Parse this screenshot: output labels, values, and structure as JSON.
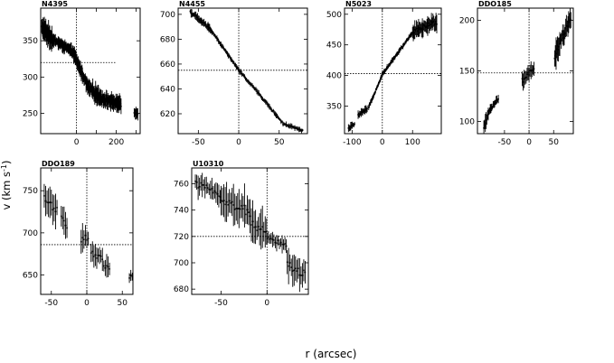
{
  "figure": {
    "ylabel_main": "v (km s",
    "ylabel_sup": "-1",
    "ylabel_close": ")",
    "xlabel": "r (arcsec)"
  },
  "chart_data": [
    {
      "type": "scatter",
      "title": "N4395",
      "xlim": [
        -180,
        320
      ],
      "ylim": [
        222,
        395
      ],
      "xticks": [
        0,
        100,
        200,
        300
      ],
      "xtick_labels": [
        "0",
        "",
        "200",
        ""
      ],
      "yticks": [
        250,
        300,
        350
      ],
      "ytick_labels": [
        "250",
        "300",
        "350"
      ],
      "vsys": 320,
      "vline": 0,
      "hline_x_range": [
        -180,
        200
      ],
      "segments": [
        {
          "x": [
            -175,
            -120
          ],
          "y": [
            368,
            352
          ],
          "err": 14,
          "step": 1.5
        },
        {
          "x": [
            -120,
            -20
          ],
          "y": [
            352,
            335
          ],
          "err": 8,
          "step": 2.0
        },
        {
          "x": [
            -20,
            60
          ],
          "y": [
            335,
            285
          ],
          "err": 10,
          "step": 2.0
        },
        {
          "x": [
            60,
            130
          ],
          "y": [
            285,
            270
          ],
          "err": 12,
          "step": 2.0
        },
        {
          "x": [
            130,
            225
          ],
          "y": [
            270,
            262
          ],
          "err": 10,
          "step": 2.0
        },
        {
          "x": [
            290,
            310
          ],
          "y": [
            250,
            250
          ],
          "err": 8,
          "step": 3.0
        }
      ]
    },
    {
      "type": "scatter",
      "title": "N4455",
      "xlim": [
        -75,
        85
      ],
      "ylim": [
        604,
        705
      ],
      "xticks": [
        -50,
        0,
        50
      ],
      "xtick_labels": [
        "-50",
        "0",
        "50"
      ],
      "yticks": [
        620,
        640,
        660,
        680,
        700
      ],
      "ytick_labels": [
        "620",
        "640",
        "660",
        "680",
        "700"
      ],
      "vsys": 655,
      "vline": 0,
      "hline_x_range": [
        -75,
        85
      ],
      "segments": [
        {
          "x": [
            -60,
            -35
          ],
          "y": [
            702,
            688
          ],
          "err": 3,
          "step": 1.0
        },
        {
          "x": [
            -35,
            0
          ],
          "y": [
            688,
            655
          ],
          "err": 2,
          "step": 1.0
        },
        {
          "x": [
            0,
            20
          ],
          "y": [
            655,
            640
          ],
          "err": 2,
          "step": 1.2
        },
        {
          "x": [
            20,
            55
          ],
          "y": [
            640,
            612
          ],
          "err": 2,
          "step": 1.2
        },
        {
          "x": [
            55,
            80
          ],
          "y": [
            612,
            606
          ],
          "err": 2,
          "step": 1.2
        }
      ]
    },
    {
      "type": "scatter",
      "title": "N5023",
      "xlim": [
        -125,
        195
      ],
      "ylim": [
        305,
        510
      ],
      "xticks": [
        -100,
        0,
        100
      ],
      "xtick_labels": [
        "-100",
        "0",
        "100"
      ],
      "yticks": [
        350,
        400,
        450,
        500
      ],
      "ytick_labels": [
        "350",
        "400",
        "450",
        "500"
      ],
      "vsys": 403,
      "vline": 0,
      "hline_x_range": [
        -125,
        195
      ],
      "segments": [
        {
          "x": [
            -112,
            -90
          ],
          "y": [
            313,
            322
          ],
          "err": 6,
          "step": 2.5
        },
        {
          "x": [
            -80,
            -50
          ],
          "y": [
            335,
            345
          ],
          "err": 6,
          "step": 2.5
        },
        {
          "x": [
            -45,
            0
          ],
          "y": [
            348,
            402
          ],
          "err": 4,
          "step": 2.0
        },
        {
          "x": [
            0,
            100
          ],
          "y": [
            402,
            470
          ],
          "err": 4,
          "step": 2.0
        },
        {
          "x": [
            100,
            180
          ],
          "y": [
            470,
            488
          ],
          "err": 14,
          "step": 2.5
        }
      ]
    },
    {
      "type": "scatter",
      "title": "DDO185",
      "xlim": [
        -105,
        90
      ],
      "ylim": [
        88,
        212
      ],
      "xticks": [
        -50,
        0,
        50
      ],
      "xtick_labels": [
        "-50",
        "0",
        "50"
      ],
      "yticks": [
        100,
        150,
        200
      ],
      "ytick_labels": [
        "100",
        "150",
        "200"
      ],
      "vsys": 148,
      "vline": 0,
      "hline_x_range": [
        -105,
        90
      ],
      "segments": [
        {
          "x": [
            -92,
            -82
          ],
          "y": [
            92,
            110
          ],
          "err": 8,
          "step": 1.5
        },
        {
          "x": [
            -82,
            -62
          ],
          "y": [
            110,
            123
          ],
          "err": 4,
          "step": 1.5
        },
        {
          "x": [
            -14,
            10
          ],
          "y": [
            140,
            152
          ],
          "err": 8,
          "step": 2.0
        },
        {
          "x": [
            52,
            58
          ],
          "y": [
            160,
            172
          ],
          "err": 14,
          "step": 1.5
        },
        {
          "x": [
            58,
            85
          ],
          "y": [
            172,
            202
          ],
          "err": 10,
          "step": 1.5
        }
      ]
    },
    {
      "type": "scatter",
      "title": "DDO189",
      "xlim": [
        -65,
        65
      ],
      "ylim": [
        627,
        777
      ],
      "xticks": [
        -50,
        0,
        50
      ],
      "xtick_labels": [
        "-50",
        "0",
        "50"
      ],
      "yticks": [
        650,
        700,
        750
      ],
      "ytick_labels": [
        "650",
        "700",
        "750"
      ],
      "vsys": 686,
      "vline": 0,
      "hline_x_range": [
        -65,
        65
      ],
      "segments": [
        {
          "x": [
            -60,
            -42
          ],
          "y": [
            740,
            728
          ],
          "err": 18,
          "step": 2.0
        },
        {
          "x": [
            -36,
            -28
          ],
          "y": [
            720,
            710
          ],
          "err": 15,
          "step": 2.0
        },
        {
          "x": [
            -8,
            3
          ],
          "y": [
            690,
            695
          ],
          "err": 15,
          "step": 2.0
        },
        {
          "x": [
            6,
            22
          ],
          "y": [
            678,
            668
          ],
          "err": 12,
          "step": 2.0
        },
        {
          "x": [
            24,
            32
          ],
          "y": [
            660,
            655
          ],
          "err": 12,
          "step": 2.0
        },
        {
          "x": [
            60,
            64
          ],
          "y": [
            648,
            648
          ],
          "err": 8,
          "step": 2.0
        }
      ]
    },
    {
      "type": "scatter",
      "title": "U10310",
      "xlim": [
        -82,
        45
      ],
      "ylim": [
        676,
        772
      ],
      "xticks": [
        -50,
        0
      ],
      "xtick_labels": [
        "-50",
        "0"
      ],
      "yticks": [
        680,
        700,
        720,
        740,
        760
      ],
      "ytick_labels": [
        "680",
        "700",
        "720",
        "740",
        "760"
      ],
      "vsys": 720,
      "vline": 0,
      "hline_x_range": [
        -82,
        45
      ],
      "segments": [
        {
          "x": [
            -78,
            -50
          ],
          "y": [
            760,
            752
          ],
          "err": 8,
          "step": 1.5
        },
        {
          "x": [
            -50,
            -20
          ],
          "y": [
            748,
            738
          ],
          "err": 14,
          "step": 1.5
        },
        {
          "x": [
            -20,
            0
          ],
          "y": [
            735,
            720
          ],
          "err": 14,
          "step": 1.5
        },
        {
          "x": [
            0,
            22
          ],
          "y": [
            720,
            712
          ],
          "err": 6,
          "step": 1.5
        },
        {
          "x": [
            22,
            42
          ],
          "y": [
            700,
            690
          ],
          "err": 12,
          "step": 1.5
        }
      ]
    }
  ]
}
